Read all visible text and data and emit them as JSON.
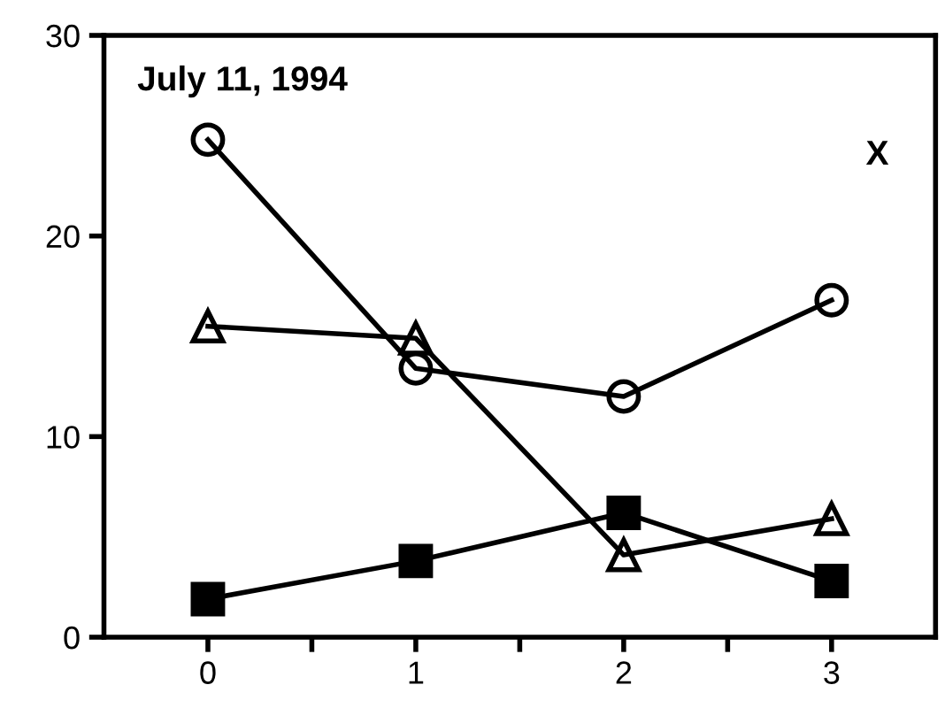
{
  "chart_data": {
    "type": "line",
    "title": "July 11, 1994",
    "annotations": [
      "X"
    ],
    "x": [
      0,
      1,
      2,
      3
    ],
    "series": [
      {
        "color": "#000000",
        "marker": "circle",
        "values": [
          24.8,
          13.4,
          12.0,
          16.8
        ]
      },
      {
        "color": "#000000",
        "marker": "triangle",
        "values": [
          15.5,
          14.9,
          4.1,
          5.9
        ]
      },
      {
        "color": "#000000",
        "marker": "square",
        "values": [
          1.9,
          3.8,
          6.2,
          2.8
        ]
      }
    ],
    "xlim": [
      -0.5,
      3.5
    ],
    "xticks": [
      0,
      {
        "value": 0.5,
        "label": null
      },
      1,
      {
        "value": 1.5,
        "label": null
      },
      2,
      {
        "value": 2.5,
        "label": null
      },
      3
    ],
    "ylim": [
      0,
      30
    ],
    "yticks": [
      0,
      10,
      20,
      30
    ],
    "grid": false,
    "legend": false,
    "line_style": "solid"
  }
}
